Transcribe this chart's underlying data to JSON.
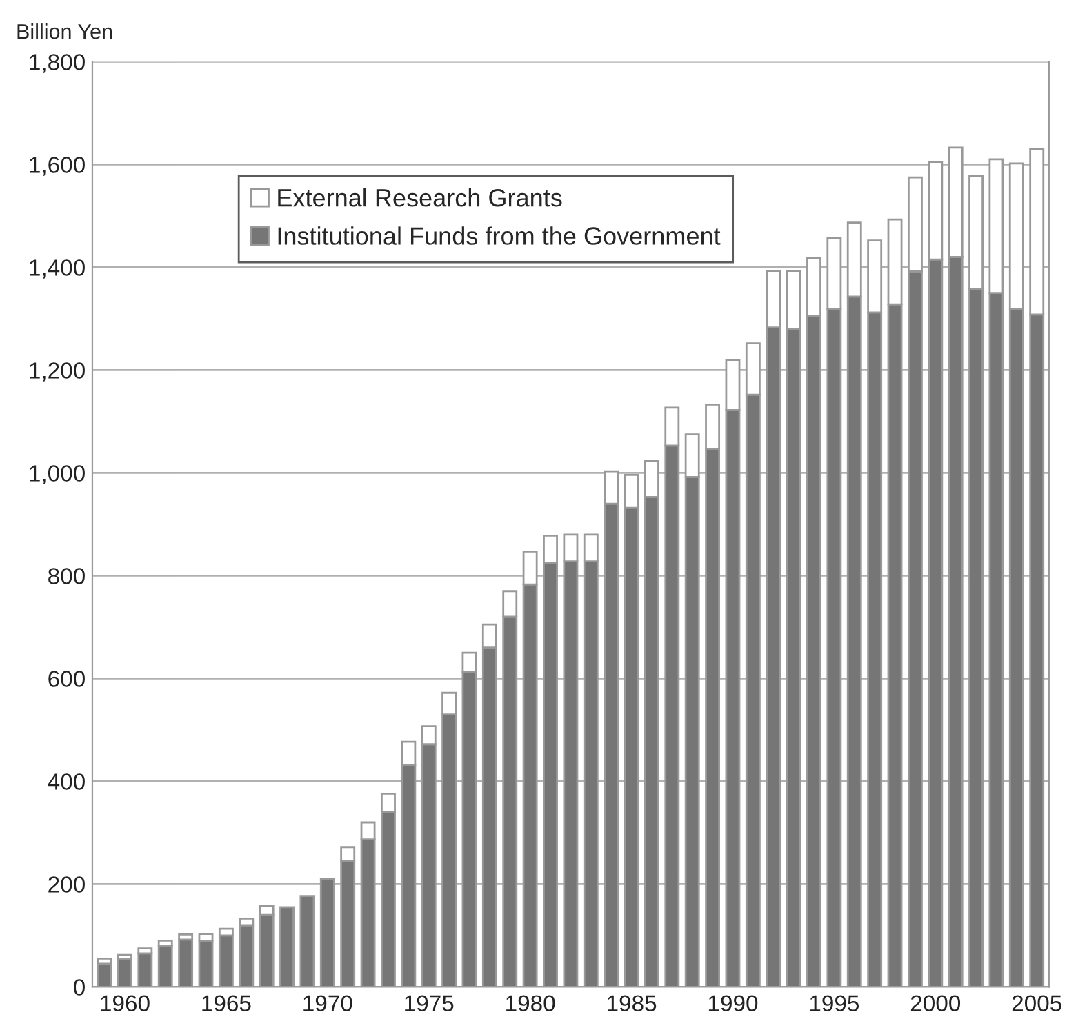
{
  "chart_data": {
    "type": "bar",
    "stacked": true,
    "ylabel": "Billion Yen",
    "categories": [
      null,
      "1960",
      null,
      null,
      null,
      null,
      "1965",
      null,
      null,
      null,
      null,
      "1970",
      null,
      null,
      null,
      null,
      "1975",
      null,
      null,
      null,
      null,
      "1980",
      null,
      null,
      null,
      null,
      "1985",
      null,
      null,
      null,
      null,
      "1990",
      null,
      null,
      null,
      null,
      "1995",
      null,
      null,
      null,
      null,
      "2000",
      null,
      null,
      null,
      null,
      "2005"
    ],
    "series": [
      {
        "name": "Institutional Funds from the Government",
        "color": "#767676",
        "values": [
          45,
          55,
          65,
          80,
          92,
          90,
          100,
          120,
          140,
          155,
          177,
          210,
          245,
          287,
          340,
          432,
          472,
          530,
          613,
          660,
          720,
          783,
          825,
          828,
          828,
          940,
          932,
          953,
          1053,
          992,
          1047,
          1122,
          1152,
          1283,
          1280,
          1305,
          1318,
          1343,
          1312,
          1328,
          1392,
          1415,
          1420,
          1358,
          1350,
          1318,
          1308
        ]
      },
      {
        "name": "External Research Grants",
        "color": "#ffffff",
        "values": [
          10,
          7,
          10,
          10,
          10,
          13,
          13,
          13,
          17,
          0,
          0,
          0,
          27,
          33,
          36,
          45,
          35,
          42,
          37,
          45,
          50,
          64,
          53,
          52,
          52,
          63,
          64,
          70,
          74,
          83,
          86,
          98,
          100,
          110,
          113,
          113,
          139,
          144,
          140,
          165,
          183,
          190,
          213,
          220,
          260,
          284,
          322
        ]
      }
    ],
    "ylim": [
      0,
      1800
    ],
    "yticks": [
      0,
      200,
      400,
      600,
      800,
      {
        "value": 1000,
        "label": "1,000"
      },
      {
        "value": 1200,
        "label": "1,200"
      },
      {
        "value": 1400,
        "label": "1,400"
      },
      {
        "value": 1600,
        "label": "1,600"
      },
      {
        "value": 1800,
        "label": "1,800"
      }
    ],
    "grid": "y",
    "legend": "top left"
  }
}
